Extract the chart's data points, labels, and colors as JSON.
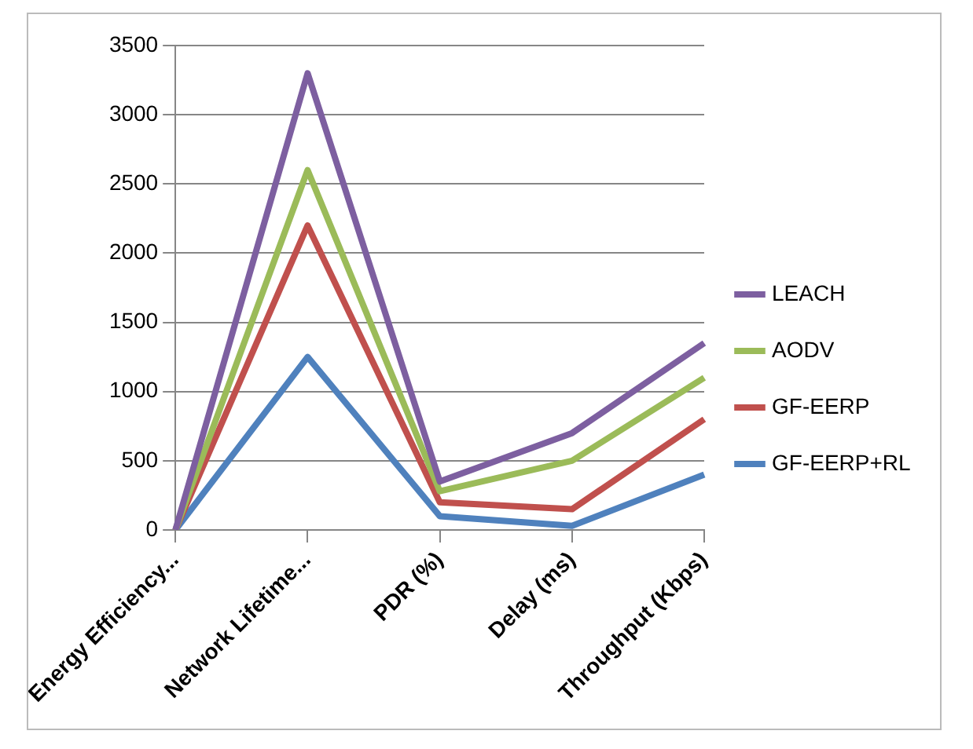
{
  "chart_data": {
    "type": "line",
    "categories": [
      "Energy Efficiency...",
      "Network Lifetime...",
      "PDR (%)",
      "Delay (ms)",
      "Throughput (Kbps)"
    ],
    "series": [
      {
        "name": "LEACH",
        "color": "#7d5fa0",
        "values": [
          0,
          3300,
          350,
          700,
          1350
        ]
      },
      {
        "name": "AODV",
        "color": "#9bbb59",
        "values": [
          0,
          2600,
          280,
          500,
          1100
        ]
      },
      {
        "name": "GF-EERP",
        "color": "#c0504d",
        "values": [
          0,
          2200,
          200,
          150,
          800
        ]
      },
      {
        "name": "GF-EERP+RL",
        "color": "#4f81bd",
        "values": [
          0,
          1250,
          100,
          30,
          400
        ]
      }
    ],
    "ylim": [
      0,
      3500
    ],
    "yticks": [
      0,
      500,
      1000,
      1500,
      2000,
      2500,
      3000,
      3500
    ],
    "grid": "y",
    "legend": "right",
    "marker": "none",
    "line_style": "solid"
  }
}
